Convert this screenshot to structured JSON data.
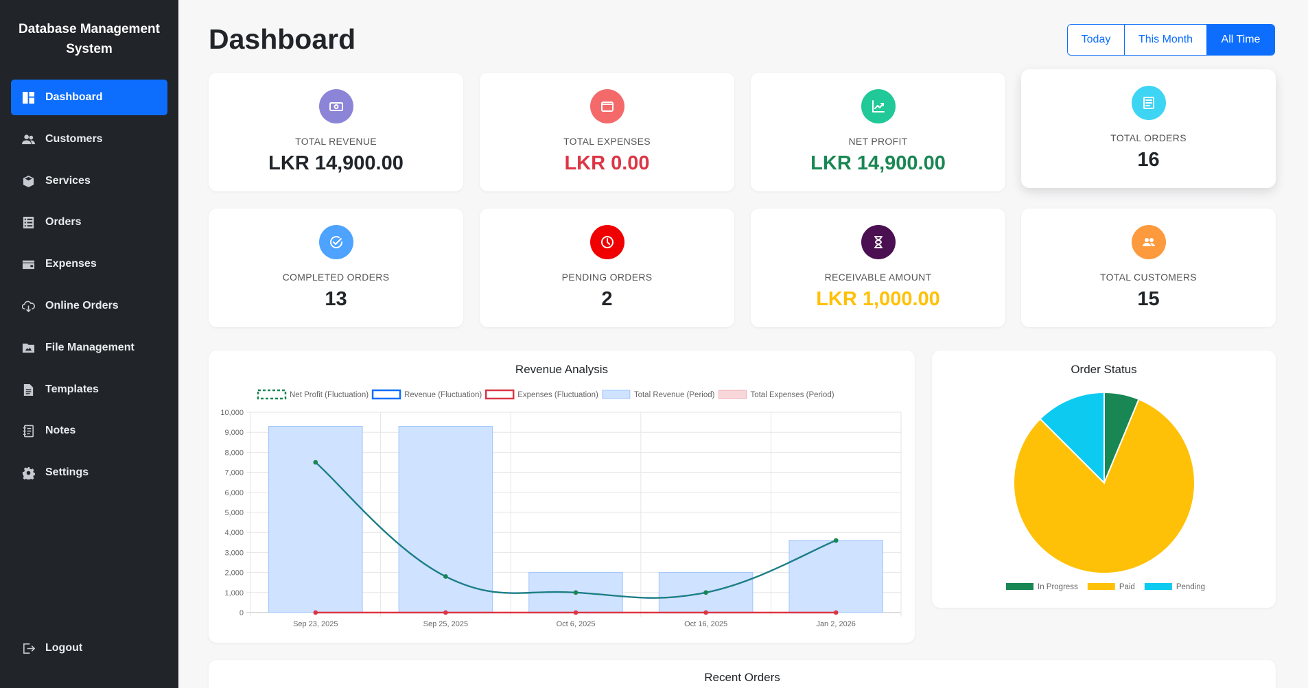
{
  "sidebar": {
    "brand": "Database Management System",
    "items": [
      {
        "label": "Dashboard",
        "icon": "dashboard-icon",
        "active": true
      },
      {
        "label": "Customers",
        "icon": "users-icon",
        "active": false
      },
      {
        "label": "Services",
        "icon": "box-icon",
        "active": false
      },
      {
        "label": "Orders",
        "icon": "list-icon",
        "active": false
      },
      {
        "label": "Expenses",
        "icon": "wallet-icon",
        "active": false
      },
      {
        "label": "Online Orders",
        "icon": "cloud-download-icon",
        "active": false
      },
      {
        "label": "File Management",
        "icon": "folder-icon",
        "active": false
      },
      {
        "label": "Templates",
        "icon": "file-icon",
        "active": false
      },
      {
        "label": "Notes",
        "icon": "notebook-icon",
        "active": false
      },
      {
        "label": "Settings",
        "icon": "gear-icon",
        "active": false
      }
    ],
    "logout": {
      "label": "Logout",
      "icon": "logout-icon"
    }
  },
  "header": {
    "title": "Dashboard",
    "ranges": [
      {
        "label": "Today",
        "active": false
      },
      {
        "label": "This Month",
        "active": false
      },
      {
        "label": "All Time",
        "active": true
      }
    ]
  },
  "stats": [
    {
      "label": "TOTAL REVENUE",
      "value": "LKR 14,900.00",
      "icon": "money-icon",
      "icon_color": "#8b84d7",
      "value_color": "#212529"
    },
    {
      "label": "TOTAL EXPENSES",
      "value": "LKR 0.00",
      "icon": "wallet-icon",
      "icon_color": "#f46a6a",
      "value_color": "#dc3545"
    },
    {
      "label": "NET PROFIT",
      "value": "LKR 14,900.00",
      "icon": "chart-line-icon",
      "icon_color": "#20c997",
      "value_color": "#198754"
    },
    {
      "label": "TOTAL ORDERS",
      "value": "16",
      "icon": "receipt-icon",
      "icon_color": "#3dd5f3",
      "value_color": "#212529"
    },
    {
      "label": "COMPLETED ORDERS",
      "value": "13",
      "icon": "check-circle-icon",
      "icon_color": "#4da3ff",
      "value_color": "#212529"
    },
    {
      "label": "PENDING ORDERS",
      "value": "2",
      "icon": "clock-icon",
      "icon_color": "#f00000",
      "value_color": "#212529"
    },
    {
      "label": "RECEIVABLE AMOUNT",
      "value": "LKR 1,000.00",
      "icon": "hourglass-icon",
      "icon_color": "#4a1051",
      "value_color": "#ffc107"
    },
    {
      "label": "TOTAL CUSTOMERS",
      "value": "15",
      "icon": "users-icon",
      "icon_color": "#fd9a3e",
      "value_color": "#212529"
    }
  ],
  "chart_data": [
    {
      "type": "bar",
      "title": "Revenue Analysis",
      "categories": [
        "Sep 23, 2025",
        "Sep 25, 2025",
        "Oct 6, 2025",
        "Oct 16, 2025",
        "Jan 2, 2026"
      ],
      "yticks": [
        "0",
        "1,000",
        "2,000",
        "3,000",
        "4,000",
        "5,000",
        "6,000",
        "7,000",
        "8,000",
        "9,000",
        "10,000"
      ],
      "ylim": [
        0,
        10000
      ],
      "grid": true,
      "legend_position": "top",
      "series": [
        {
          "name": "Net Profit (Fluctuation)",
          "kind": "line",
          "style": "dashed",
          "color": "#198754",
          "values": [
            7500,
            1800,
            1000,
            1000,
            3600
          ]
        },
        {
          "name": "Revenue (Fluctuation)",
          "kind": "line",
          "color": "#0d6efd",
          "values": [
            7500,
            1800,
            1000,
            1000,
            3600
          ]
        },
        {
          "name": "Expenses (Fluctuation)",
          "kind": "line",
          "color": "#dc3545",
          "values": [
            0,
            0,
            0,
            0,
            0
          ]
        },
        {
          "name": "Total Revenue (Period)",
          "kind": "bar",
          "color": "#cfe2ff",
          "values": [
            9300,
            9300,
            2000,
            2000,
            3600
          ]
        },
        {
          "name": "Total Expenses (Period)",
          "kind": "bar",
          "color": "#f8d7da",
          "values": [
            0,
            0,
            0,
            0,
            0
          ]
        }
      ]
    },
    {
      "type": "pie",
      "title": "Order Status",
      "legend_position": "bottom",
      "categories": [
        "In Progress",
        "Paid",
        "Pending"
      ],
      "values": [
        1,
        13,
        2
      ],
      "colors": [
        "#198754",
        "#ffc107",
        "#0dcaf0"
      ]
    }
  ],
  "recent_orders": {
    "title": "Recent Orders"
  }
}
